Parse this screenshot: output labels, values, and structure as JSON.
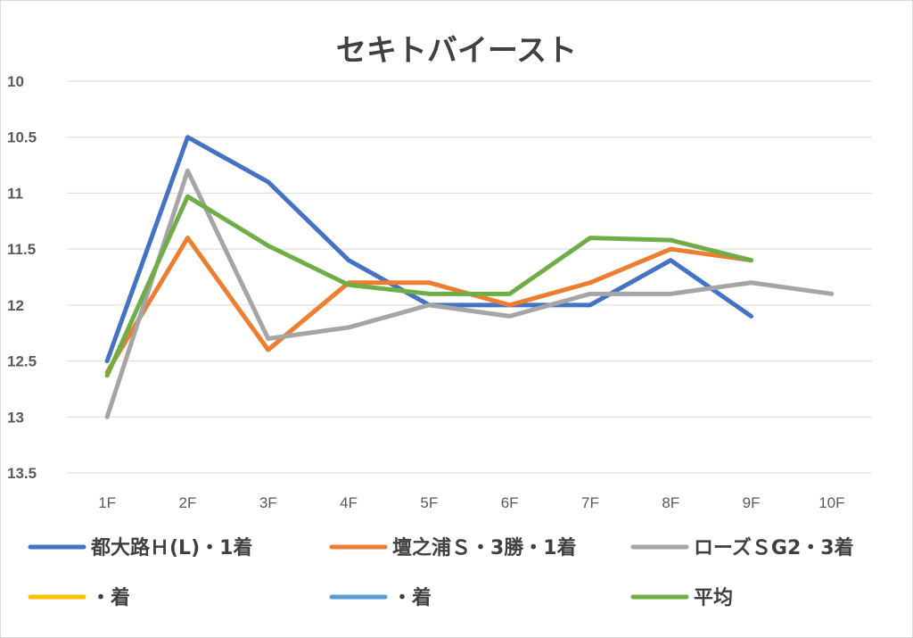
{
  "chart_data": {
    "type": "line",
    "title": "セキトバイースト",
    "xlabel": "",
    "ylabel": "",
    "y_reversed": true,
    "ylim": [
      10,
      13.5
    ],
    "yticks": [
      "10",
      "10.5",
      "11",
      "11.5",
      "12",
      "12.5",
      "13",
      "13.5"
    ],
    "categories": [
      "1F",
      "2F",
      "3F",
      "4F",
      "5F",
      "6F",
      "7F",
      "8F",
      "9F",
      "10F"
    ],
    "grid": "horizontal",
    "legend_position": "bottom",
    "series": [
      {
        "name": "都大路Ｈ(L)・1着",
        "color": "#4472c4",
        "values": [
          12.5,
          10.5,
          10.9,
          11.6,
          12.0,
          12.0,
          12.0,
          11.6,
          12.1,
          null
        ]
      },
      {
        "name": "壇之浦Ｓ・3勝・1着",
        "color": "#ed7d31",
        "values": [
          12.6,
          11.4,
          12.4,
          11.8,
          11.8,
          12.0,
          11.8,
          11.5,
          11.6,
          null
        ]
      },
      {
        "name": "ローズＳG2・3着",
        "color": "#a5a5a5",
        "values": [
          13.0,
          10.8,
          12.3,
          12.2,
          12.0,
          12.1,
          11.9,
          11.9,
          11.8,
          11.9
        ]
      },
      {
        "name": "・着",
        "color": "#ffc000",
        "values": [
          null,
          null,
          null,
          null,
          null,
          null,
          null,
          null,
          null,
          null
        ]
      },
      {
        "name": "・着",
        "color": "#5b9bd5",
        "values": [
          null,
          null,
          null,
          null,
          null,
          null,
          null,
          null,
          null,
          null
        ]
      },
      {
        "name": "平均",
        "color": "#70ad47",
        "values": [
          12.63,
          11.03,
          11.47,
          11.82,
          11.9,
          11.9,
          11.4,
          11.42,
          11.6,
          null
        ]
      }
    ]
  }
}
